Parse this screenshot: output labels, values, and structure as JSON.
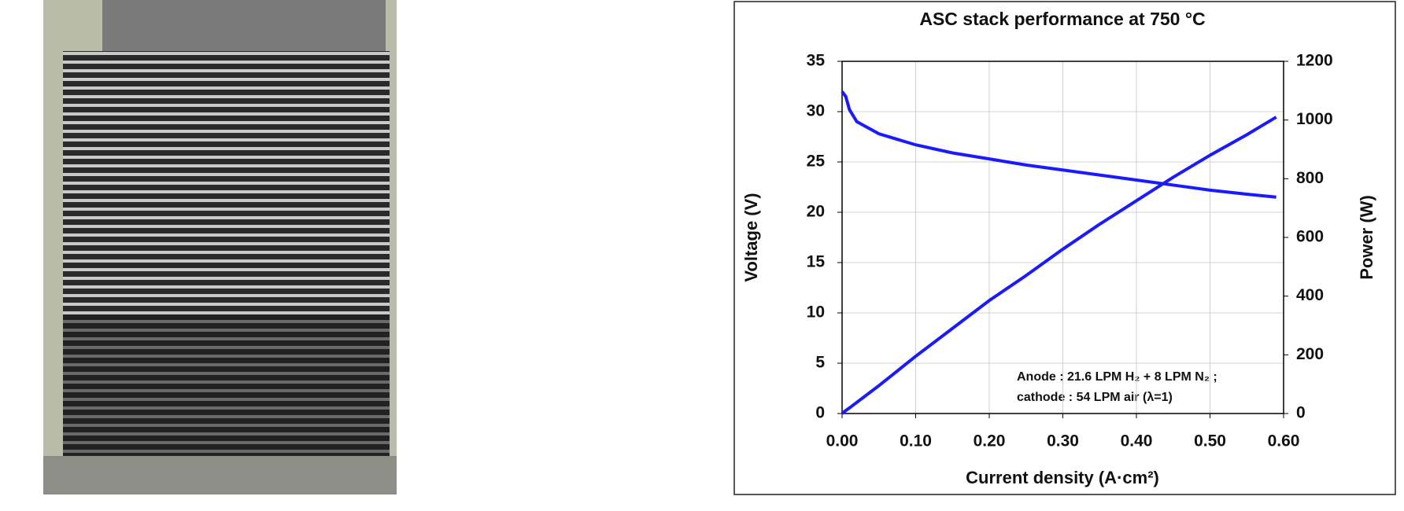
{
  "chart_data": {
    "type": "line",
    "title": "ASC stack performance at 750 °C",
    "x_label": "Current density (A·cm²)",
    "y_label": "Voltage (V)",
    "y2_label": "Power (W)",
    "annotations": [
      "Anode : 21.6 LPM H₂ + 8 LPM N₂ ;",
      "cathode : 54 LPM air (λ=1)"
    ],
    "x": [
      0,
      0.005,
      0.01,
      0.02,
      0.05,
      0.1,
      0.15,
      0.2,
      0.25,
      0.3,
      0.35,
      0.4,
      0.45,
      0.5,
      0.55,
      0.59
    ],
    "series": [
      {
        "name": "Voltage",
        "color": "#1a1aff",
        "values": [
          32,
          31.5,
          30.2,
          29,
          27.8,
          26.7,
          25.9,
          25.3,
          24.7,
          24.2,
          23.7,
          23.2,
          22.7,
          22.2,
          21.8,
          21.5
        ]
      },
      {
        "name": "Power",
        "color": "#1a1aff",
        "axis": "y2",
        "values": [
          0,
          10,
          19,
          38,
          95,
          195,
          290,
          385,
          470,
          560,
          645,
          725,
          805,
          880,
          950,
          1010
        ]
      }
    ],
    "xlim": [
      0,
      0.6
    ],
    "xticks": [
      {
        "value": 0,
        "label": "0.00"
      },
      {
        "value": 0.1,
        "label": "0.10"
      },
      {
        "value": 0.2,
        "label": "0.20"
      },
      {
        "value": 0.3,
        "label": "0.30"
      },
      {
        "value": 0.4,
        "label": "0.40"
      },
      {
        "value": 0.5,
        "label": "0.50"
      },
      {
        "value": 0.6,
        "label": "0.60"
      }
    ],
    "ylim": [
      0,
      35
    ],
    "yticks": [
      0,
      5,
      10,
      15,
      20,
      25,
      30,
      35
    ],
    "y2lim": [
      0,
      1200
    ],
    "y2ticks": [
      0,
      200,
      400,
      600,
      800,
      1000,
      1200
    ],
    "grid": true
  }
}
